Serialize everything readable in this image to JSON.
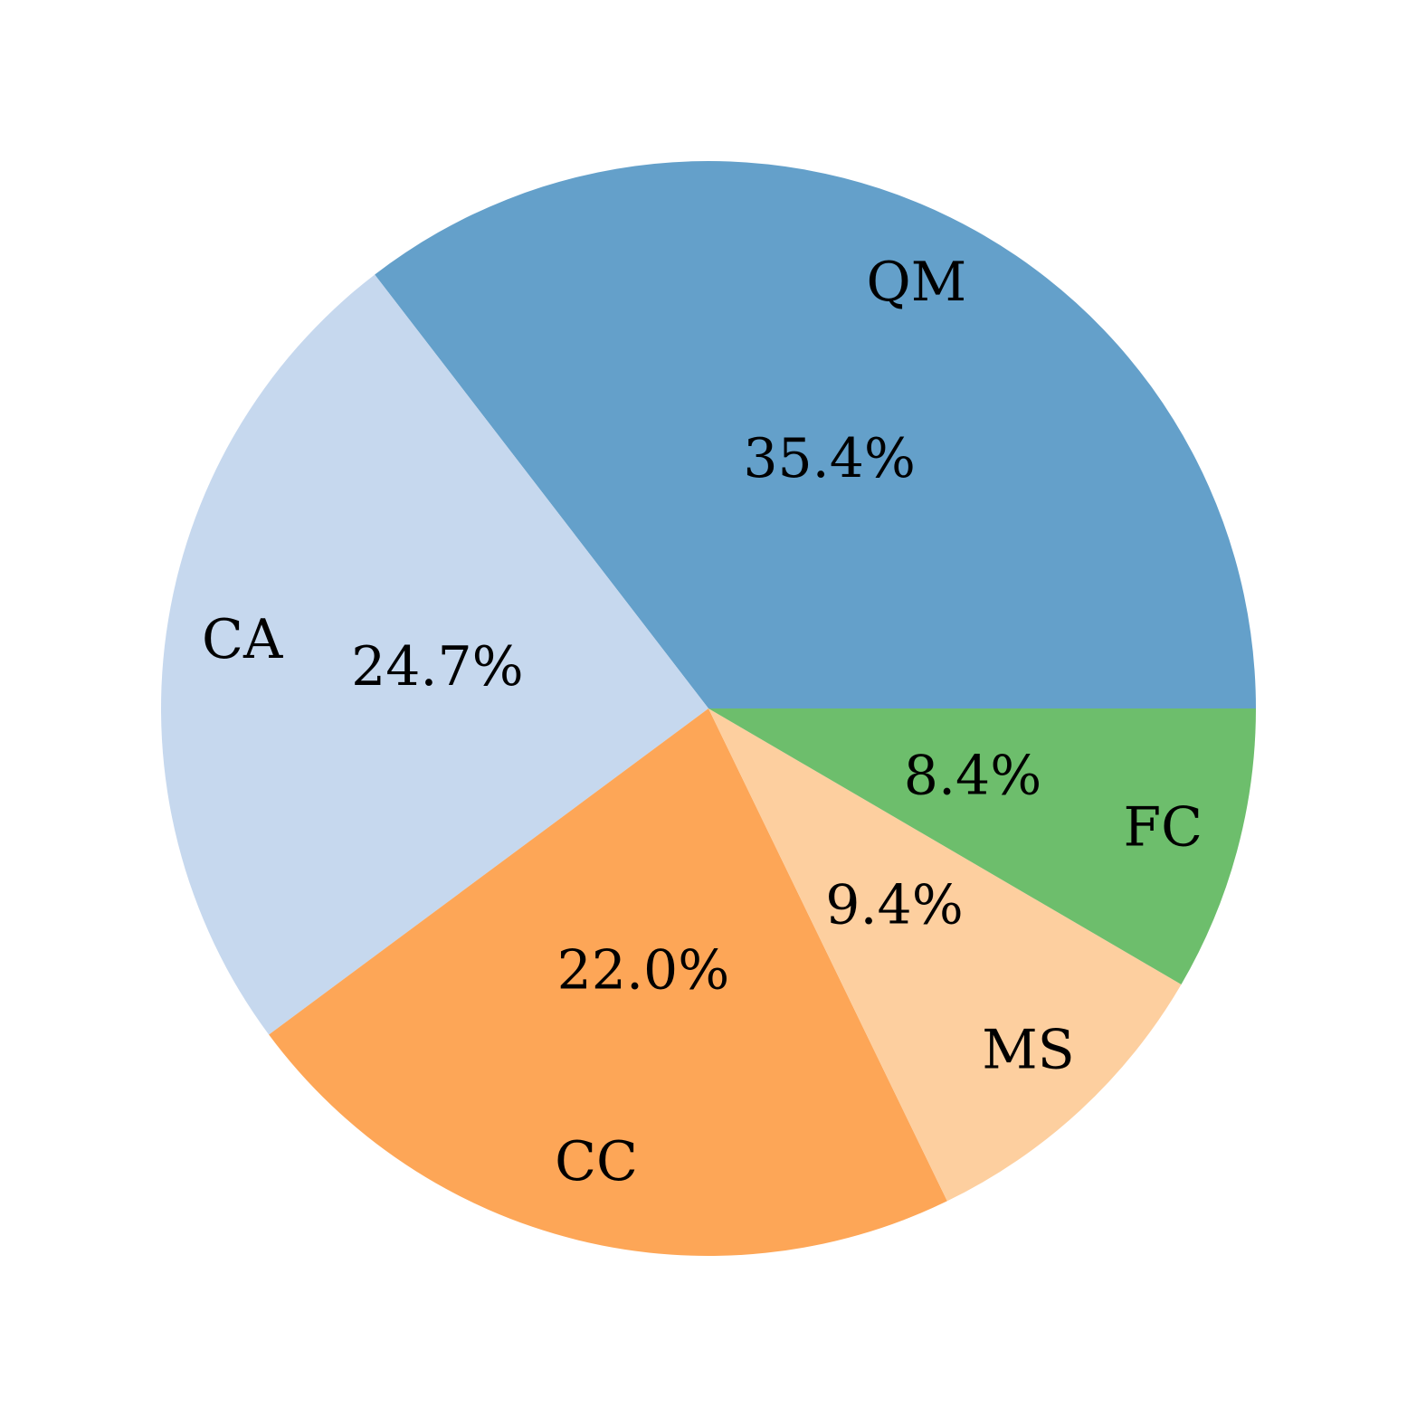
{
  "chart_data": {
    "type": "pie",
    "categories": [
      "QM",
      "CA",
      "CC",
      "MS",
      "FC"
    ],
    "values": [
      35.4,
      24.7,
      22.0,
      9.4,
      8.4
    ],
    "value_labels": [
      "35.4%",
      "24.7%",
      "22.0%",
      "9.4%",
      "8.4%"
    ],
    "colors": [
      "#64a0ca",
      "#c6d8ee",
      "#fda657",
      "#fdcf9f",
      "#6dbe6c"
    ]
  }
}
